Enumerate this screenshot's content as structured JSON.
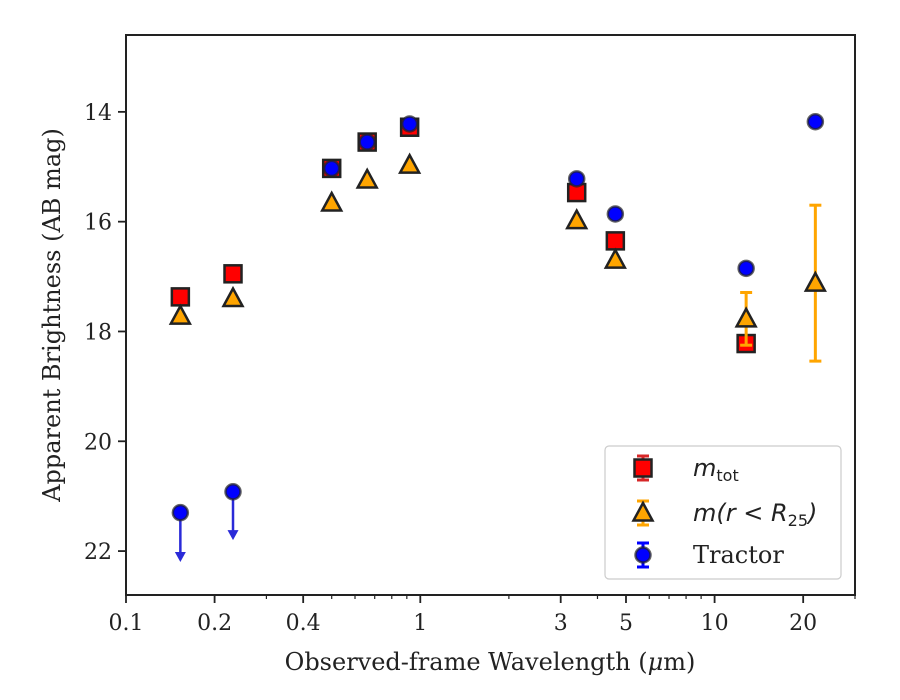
{
  "chart_data": {
    "type": "scatter",
    "xlabel_prefix": "Observed-frame Wavelength (",
    "xlabel_mu": "μ",
    "xlabel_suffix": "m)",
    "ylabel": "Apparent Brightness (AB mag)",
    "x_scale": "log",
    "xlim": [
      0.1,
      30
    ],
    "ylim": [
      22.8,
      12.6
    ],
    "y_inverted": true,
    "grid": false,
    "legend_position": "lower-right",
    "x_ticks": [
      {
        "value": 0.1,
        "label": "0.1"
      },
      {
        "value": 0.2,
        "label": "0.2"
      },
      {
        "value": 0.4,
        "label": "0.4"
      },
      {
        "value": 1,
        "label": "1"
      },
      {
        "value": 3,
        "label": "3"
      },
      {
        "value": 5,
        "label": "5"
      },
      {
        "value": 10,
        "label": "10"
      },
      {
        "value": 20,
        "label": "20"
      }
    ],
    "x_minor_ticks": [
      0.3,
      0.5,
      0.6,
      0.7,
      0.8,
      0.9,
      2,
      4,
      6,
      7,
      8,
      9,
      30
    ],
    "y_ticks": [
      {
        "value": 14,
        "label": "14"
      },
      {
        "value": 16,
        "label": "16"
      },
      {
        "value": 18,
        "label": "18"
      },
      {
        "value": 20,
        "label": "20"
      },
      {
        "value": 22,
        "label": "22"
      }
    ],
    "series": [
      {
        "key": "mtot",
        "name_main": "m",
        "name_sub": "tot",
        "marker": "square",
        "color": "#ff0000",
        "errcolor": "#d62728",
        "points": [
          {
            "x": 0.153,
            "y": 17.37,
            "err": 0
          },
          {
            "x": 0.231,
            "y": 16.95,
            "err": 0
          },
          {
            "x": 0.5,
            "y": 15.03,
            "err": 0
          },
          {
            "x": 0.66,
            "y": 14.55,
            "err": 0
          },
          {
            "x": 0.92,
            "y": 14.28,
            "err": 0
          },
          {
            "x": 3.4,
            "y": 15.47,
            "err": 0
          },
          {
            "x": 4.6,
            "y": 16.35,
            "err": 0
          },
          {
            "x": 12.8,
            "y": 18.22,
            "err": 0
          }
        ]
      },
      {
        "key": "mr25",
        "name_main": "m(r < R",
        "name_sub": "25",
        "name_tail": ")",
        "marker": "triangle",
        "color": "#ffa500",
        "errcolor": "#ffa500",
        "points": [
          {
            "x": 0.153,
            "y": 17.72,
            "err": 0
          },
          {
            "x": 0.231,
            "y": 17.4,
            "err": 0
          },
          {
            "x": 0.5,
            "y": 15.66,
            "err": 0
          },
          {
            "x": 0.66,
            "y": 15.24,
            "err": 0
          },
          {
            "x": 0.92,
            "y": 14.97,
            "err": 0
          },
          {
            "x": 3.4,
            "y": 15.98,
            "err": 0
          },
          {
            "x": 4.6,
            "y": 16.7,
            "err": 0
          },
          {
            "x": 12.8,
            "y": 17.77,
            "err": 0.48
          },
          {
            "x": 22.0,
            "y": 17.12,
            "err": 1.42
          }
        ]
      },
      {
        "key": "tractor",
        "name": "Tractor",
        "marker": "circle",
        "color": "#0000ff",
        "errcolor": "#0000ff",
        "points": [
          {
            "x": 0.153,
            "y": 21.3,
            "upper_limit": true,
            "arrow_to": 22.2
          },
          {
            "x": 0.231,
            "y": 20.92,
            "upper_limit": true,
            "arrow_to": 21.8
          },
          {
            "x": 0.5,
            "y": 15.03
          },
          {
            "x": 0.66,
            "y": 14.55
          },
          {
            "x": 0.92,
            "y": 14.22
          },
          {
            "x": 3.4,
            "y": 15.22
          },
          {
            "x": 4.6,
            "y": 15.86
          },
          {
            "x": 12.8,
            "y": 16.85
          },
          {
            "x": 22.0,
            "y": 14.18
          }
        ]
      }
    ]
  }
}
